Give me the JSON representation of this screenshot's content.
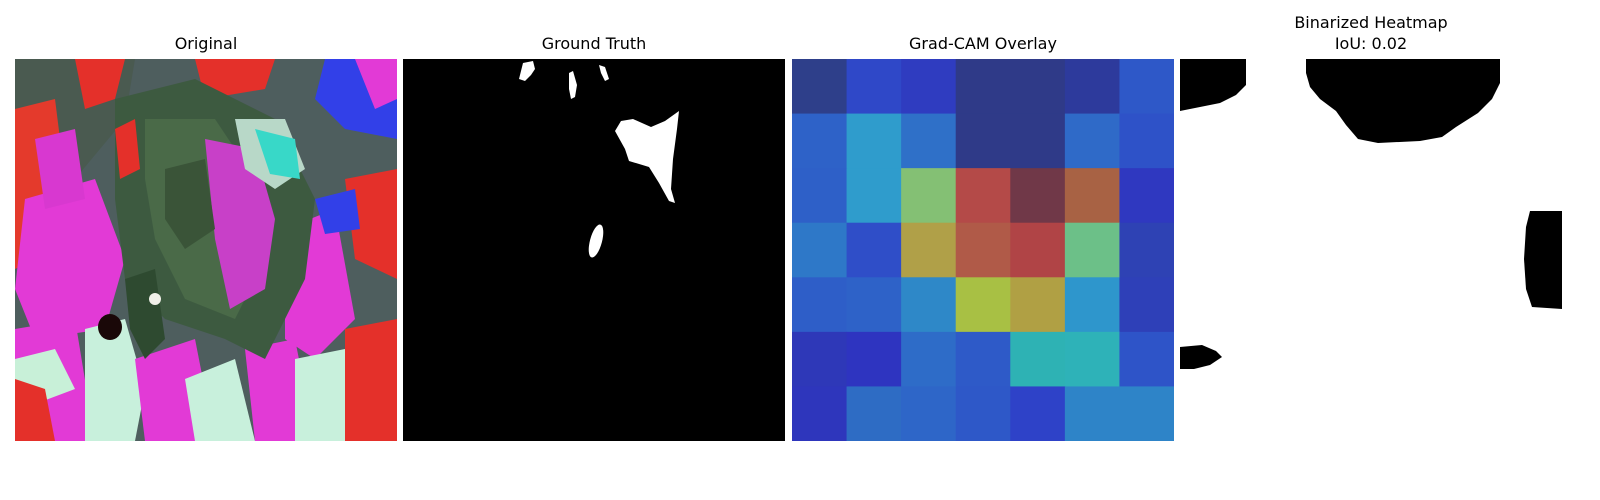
{
  "panels": [
    {
      "title": "Original"
    },
    {
      "title": "Ground Truth"
    },
    {
      "title": "Grad-CAM Overlay"
    },
    {
      "title": "Binarized Heatmap",
      "subtitle": "IoU: 0.02"
    }
  ],
  "gradcam": {
    "grid_size": 7,
    "colors": [
      [
        "#2e3f8a",
        "#2f48c8",
        "#2f3cc0",
        "#2f3a88",
        "#2f3a88",
        "#2d3a9c",
        "#2e58c8"
      ],
      [
        "#2e62c8",
        "#2f9ccc",
        "#2f70c8",
        "#2f3a88",
        "#2f3a88",
        "#2f6ac8",
        "#2e52c8"
      ],
      [
        "#2e60c8",
        "#2f9ccc",
        "#84c074",
        "#b44a48",
        "#703848",
        "#a86244",
        "#2f38c0"
      ],
      [
        "#2e78c8",
        "#2f4ec8",
        "#b0a048",
        "#b05a48",
        "#b04446",
        "#6cc088",
        "#2e42b4"
      ],
      [
        "#2e5ec8",
        "#2e62c8",
        "#2e88c8",
        "#a8c044",
        "#b0a044",
        "#2e96cc",
        "#2e40b8"
      ],
      [
        "#2e38b8",
        "#2e34c0",
        "#2e6cc8",
        "#2e5ac8",
        "#2eb2b4",
        "#2eb2b8",
        "#2e54c8"
      ],
      [
        "#2e36bc",
        "#2e6cc4",
        "#2e66c8",
        "#2e58c8",
        "#2e42c8",
        "#2e84c8",
        "#2e84c8"
      ]
    ]
  }
}
